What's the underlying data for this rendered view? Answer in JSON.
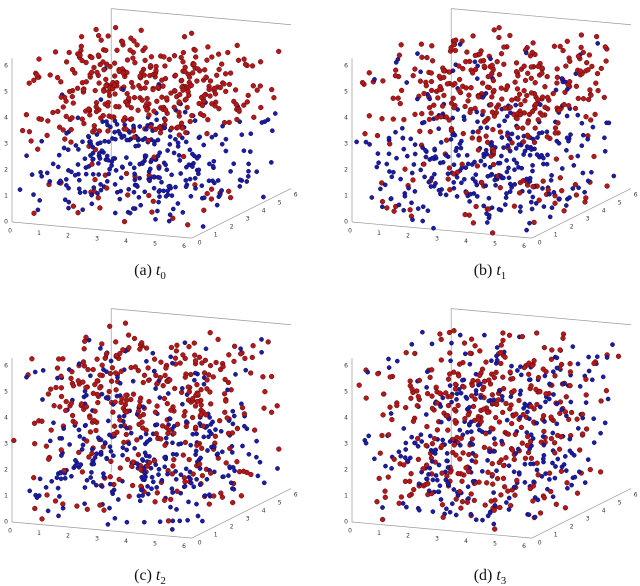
{
  "axis_ticks": [
    "0",
    "1",
    "2",
    "3",
    "4",
    "5",
    "6"
  ],
  "panels": [
    {
      "label": "(a)",
      "variable": "t",
      "subscript": "0"
    },
    {
      "label": "(b)",
      "variable": "t",
      "subscript": "1"
    },
    {
      "label": "(c)",
      "variable": "t",
      "subscript": "2"
    },
    {
      "label": "(d)",
      "variable": "t",
      "subscript": "3"
    }
  ]
}
